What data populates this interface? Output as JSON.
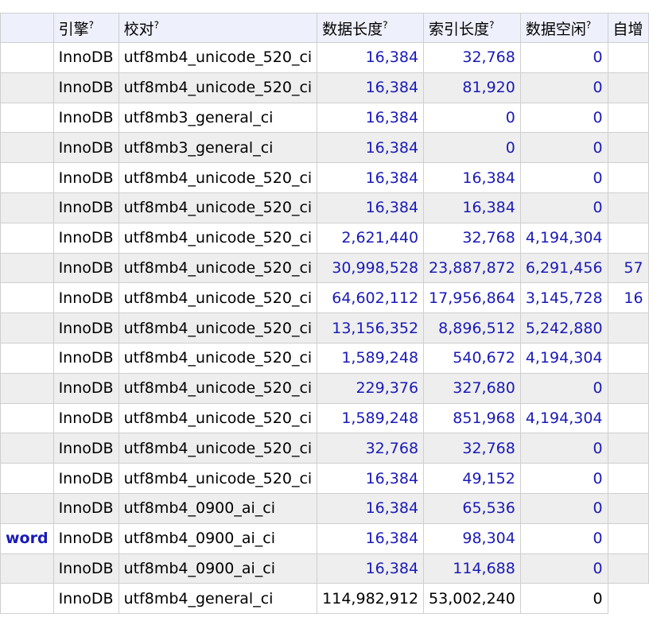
{
  "headers": {
    "engine": "引擎",
    "collation": "校对",
    "data_length": "数据长度",
    "index_length": "索引长度",
    "data_free": "数据空闲",
    "auto_increment": "自增",
    "help_mark": "?"
  },
  "rows": [
    {
      "name": "",
      "engine": "InnoDB",
      "collation": "utf8mb4_unicode_520_ci",
      "data_length": "16,384",
      "index_length": "32,768",
      "data_free": "0",
      "auto_increment": ""
    },
    {
      "name": "",
      "engine": "InnoDB",
      "collation": "utf8mb4_unicode_520_ci",
      "data_length": "16,384",
      "index_length": "81,920",
      "data_free": "0",
      "auto_increment": ""
    },
    {
      "name": "",
      "engine": "InnoDB",
      "collation": "utf8mb3_general_ci",
      "data_length": "16,384",
      "index_length": "0",
      "data_free": "0",
      "auto_increment": ""
    },
    {
      "name": "",
      "engine": "InnoDB",
      "collation": "utf8mb3_general_ci",
      "data_length": "16,384",
      "index_length": "0",
      "data_free": "0",
      "auto_increment": ""
    },
    {
      "name": "",
      "engine": "InnoDB",
      "collation": "utf8mb4_unicode_520_ci",
      "data_length": "16,384",
      "index_length": "16,384",
      "data_free": "0",
      "auto_increment": ""
    },
    {
      "name": "",
      "engine": "InnoDB",
      "collation": "utf8mb4_unicode_520_ci",
      "data_length": "16,384",
      "index_length": "16,384",
      "data_free": "0",
      "auto_increment": ""
    },
    {
      "name": "",
      "engine": "InnoDB",
      "collation": "utf8mb4_unicode_520_ci",
      "data_length": "2,621,440",
      "index_length": "32,768",
      "data_free": "4,194,304",
      "auto_increment": ""
    },
    {
      "name": "",
      "engine": "InnoDB",
      "collation": "utf8mb4_unicode_520_ci",
      "data_length": "30,998,528",
      "index_length": "23,887,872",
      "data_free": "6,291,456",
      "auto_increment": "57"
    },
    {
      "name": "",
      "engine": "InnoDB",
      "collation": "utf8mb4_unicode_520_ci",
      "data_length": "64,602,112",
      "index_length": "17,956,864",
      "data_free": "3,145,728",
      "auto_increment": "16"
    },
    {
      "name": "",
      "engine": "InnoDB",
      "collation": "utf8mb4_unicode_520_ci",
      "data_length": "13,156,352",
      "index_length": "8,896,512",
      "data_free": "5,242,880",
      "auto_increment": ""
    },
    {
      "name": "",
      "engine": "InnoDB",
      "collation": "utf8mb4_unicode_520_ci",
      "data_length": "1,589,248",
      "index_length": "540,672",
      "data_free": "4,194,304",
      "auto_increment": ""
    },
    {
      "name": "",
      "engine": "InnoDB",
      "collation": "utf8mb4_unicode_520_ci",
      "data_length": "229,376",
      "index_length": "327,680",
      "data_free": "0",
      "auto_increment": ""
    },
    {
      "name": "",
      "engine": "InnoDB",
      "collation": "utf8mb4_unicode_520_ci",
      "data_length": "1,589,248",
      "index_length": "851,968",
      "data_free": "4,194,304",
      "auto_increment": ""
    },
    {
      "name": "",
      "engine": "InnoDB",
      "collation": "utf8mb4_unicode_520_ci",
      "data_length": "32,768",
      "index_length": "32,768",
      "data_free": "0",
      "auto_increment": ""
    },
    {
      "name": "",
      "engine": "InnoDB",
      "collation": "utf8mb4_unicode_520_ci",
      "data_length": "16,384",
      "index_length": "49,152",
      "data_free": "0",
      "auto_increment": ""
    },
    {
      "name": "",
      "engine": "InnoDB",
      "collation": "utf8mb4_0900_ai_ci",
      "data_length": "16,384",
      "index_length": "65,536",
      "data_free": "0",
      "auto_increment": ""
    },
    {
      "name": "word",
      "engine": "InnoDB",
      "collation": "utf8mb4_0900_ai_ci",
      "data_length": "16,384",
      "index_length": "98,304",
      "data_free": "0",
      "auto_increment": ""
    },
    {
      "name": "",
      "engine": "InnoDB",
      "collation": "utf8mb4_0900_ai_ci",
      "data_length": "16,384",
      "index_length": "114,688",
      "data_free": "0",
      "auto_increment": ""
    }
  ],
  "total": {
    "name": "",
    "engine": "InnoDB",
    "collation": "utf8mb4_general_ci",
    "data_length": "114,982,912",
    "index_length": "53,002,240",
    "data_free": "0"
  }
}
